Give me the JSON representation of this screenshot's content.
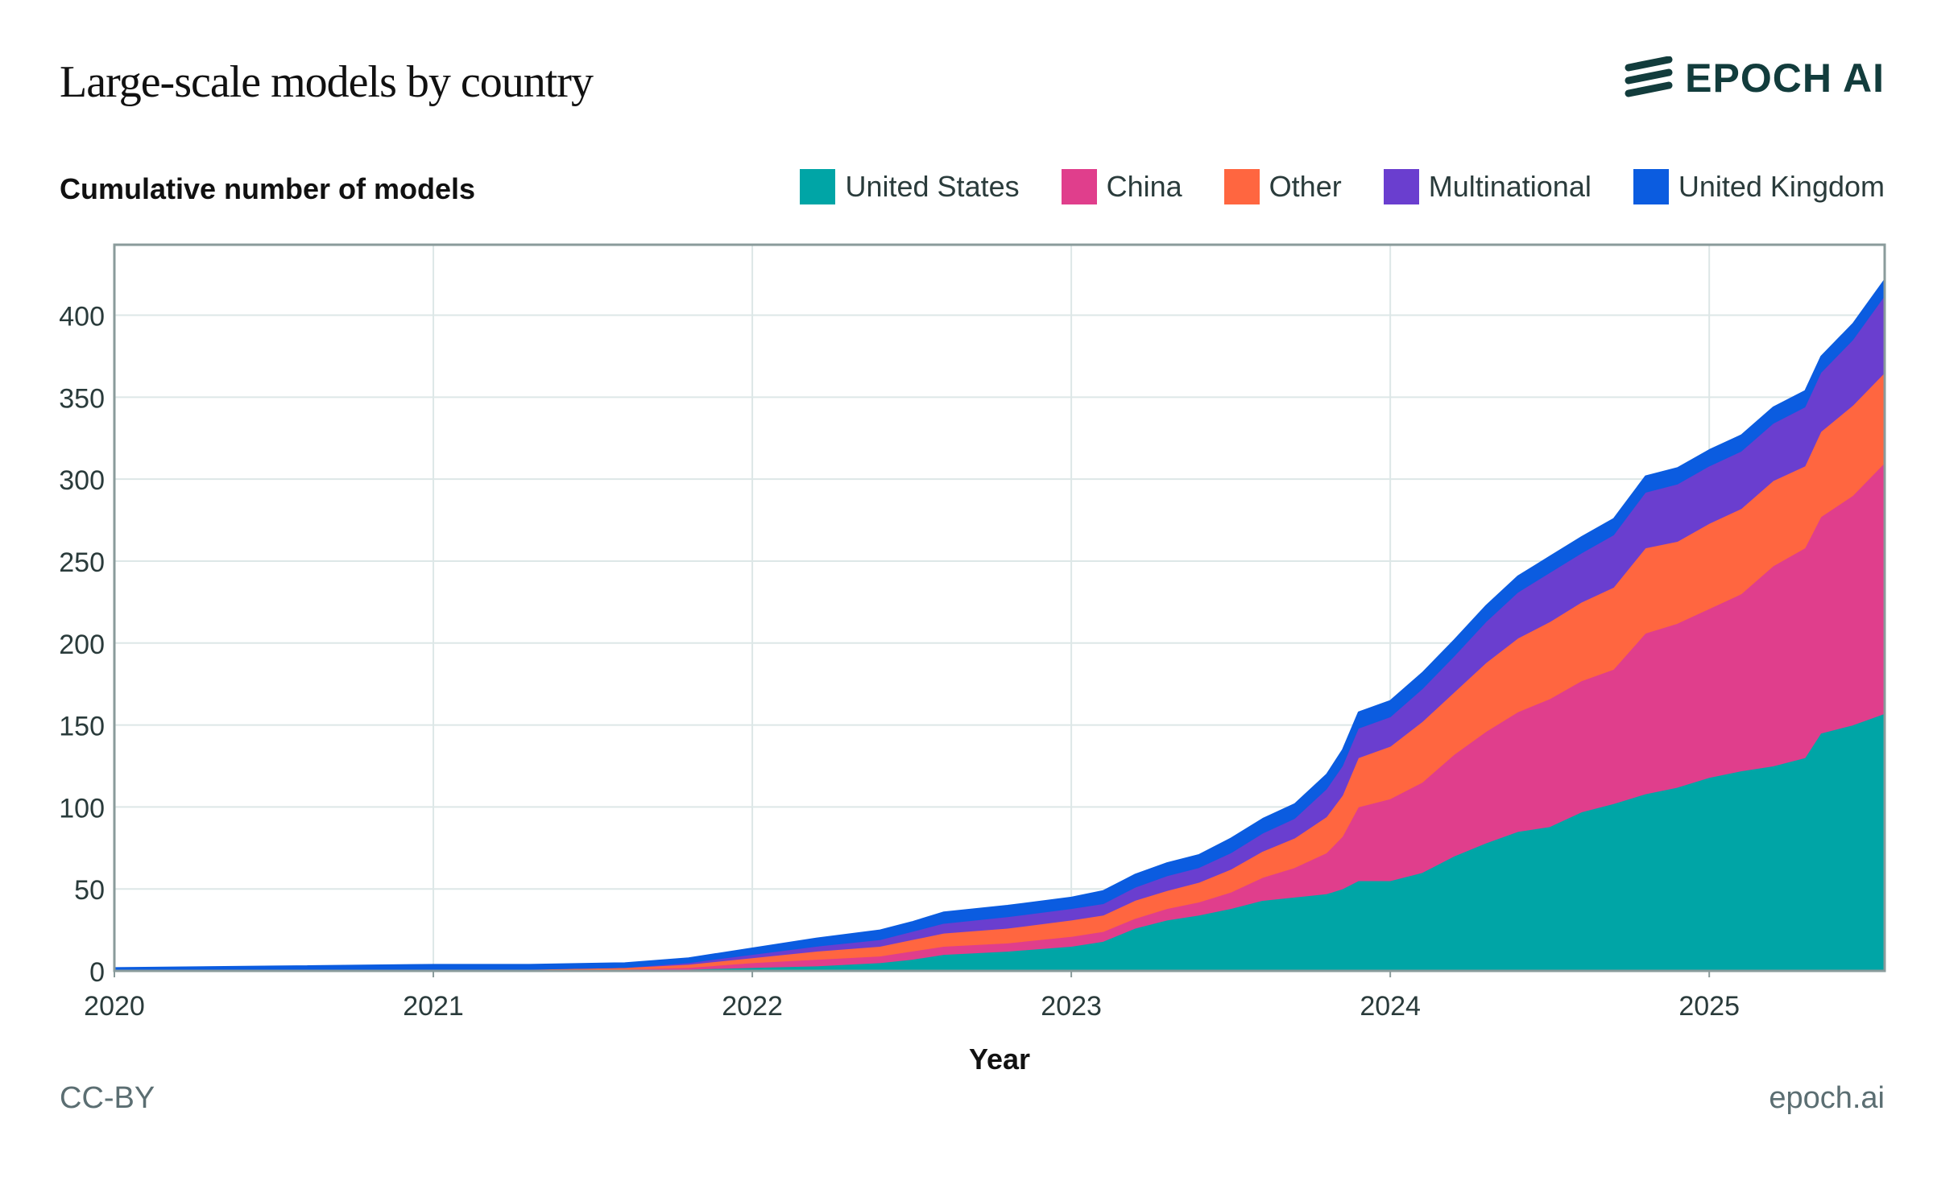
{
  "header": {
    "title": "Large-scale models by country",
    "brand": "EPOCH AI"
  },
  "footer": {
    "license": "CC-BY",
    "site": "epoch.ai"
  },
  "colors": {
    "United States": "#00a5a6",
    "China": "#e03e8c",
    "Other": "#ff6640",
    "Multinational": "#6a3ecf",
    "United Kingdom": "#0b5ce0",
    "grid": "#dde7e7",
    "axis": "#8a9b9b",
    "brand": "#123c3c"
  },
  "chart_data": {
    "type": "area",
    "stacked": true,
    "title": "Large-scale models by country",
    "xlabel": "Year",
    "ylabel": "Cumulative number of models",
    "xlim": [
      2020.0,
      2025.55
    ],
    "ylim": [
      0,
      443
    ],
    "x_ticks": [
      2020,
      2021,
      2022,
      2023,
      2024,
      2025
    ],
    "y_ticks": [
      0,
      50,
      100,
      150,
      200,
      250,
      300,
      350,
      400
    ],
    "legend_position": "top-right",
    "grid": true,
    "x": [
      2020.0,
      2020.5,
      2021.0,
      2021.3,
      2021.6,
      2021.8,
      2022.0,
      2022.2,
      2022.4,
      2022.5,
      2022.6,
      2022.8,
      2023.0,
      2023.1,
      2023.2,
      2023.3,
      2023.4,
      2023.5,
      2023.6,
      2023.7,
      2023.8,
      2023.85,
      2023.9,
      2024.0,
      2024.1,
      2024.2,
      2024.3,
      2024.4,
      2024.5,
      2024.6,
      2024.7,
      2024.8,
      2024.9,
      2025.0,
      2025.1,
      2025.2,
      2025.3,
      2025.35,
      2025.45,
      2025.55
    ],
    "series": [
      {
        "name": "United States",
        "values": [
          1,
          1,
          1,
          1,
          1,
          1,
          2,
          3,
          5,
          7,
          10,
          12,
          15,
          18,
          26,
          31,
          34,
          38,
          43,
          45,
          47,
          50,
          55,
          55,
          60,
          70,
          78,
          85,
          88,
          97,
          102,
          108,
          112,
          118,
          122,
          125,
          130,
          145,
          150,
          157
        ]
      },
      {
        "name": "China",
        "values": [
          0,
          0,
          0,
          0,
          0,
          1,
          3,
          4,
          4,
          5,
          5,
          5,
          6,
          6,
          6,
          7,
          8,
          10,
          14,
          18,
          25,
          32,
          45,
          50,
          55,
          62,
          68,
          73,
          78,
          80,
          82,
          98,
          100,
          103,
          108,
          122,
          128,
          132,
          140,
          153
        ]
      },
      {
        "name": "Other",
        "values": [
          0,
          0,
          0,
          0,
          1,
          2,
          3,
          5,
          6,
          7,
          8,
          9,
          10,
          10,
          11,
          11,
          12,
          14,
          16,
          18,
          22,
          25,
          30,
          32,
          37,
          38,
          42,
          45,
          47,
          48,
          50,
          52,
          50,
          52,
          52,
          52,
          50,
          52,
          55,
          55
        ]
      },
      {
        "name": "Multinational",
        "values": [
          0,
          0,
          0,
          0,
          0,
          1,
          2,
          3,
          4,
          5,
          6,
          7,
          7,
          7,
          8,
          9,
          9,
          10,
          11,
          12,
          17,
          18,
          18,
          18,
          20,
          22,
          25,
          28,
          30,
          30,
          32,
          34,
          35,
          35,
          35,
          35,
          36,
          36,
          40,
          47
        ]
      },
      {
        "name": "United Kingdom",
        "values": [
          1,
          2,
          3,
          3,
          3,
          3,
          4,
          5,
          6,
          6,
          7,
          7,
          7,
          8,
          8,
          8,
          8,
          9,
          9,
          9,
          9,
          10,
          10,
          10,
          10,
          10,
          10,
          10,
          10,
          10,
          10,
          10,
          10,
          10,
          10,
          10,
          10,
          10,
          10,
          10
        ]
      }
    ]
  }
}
